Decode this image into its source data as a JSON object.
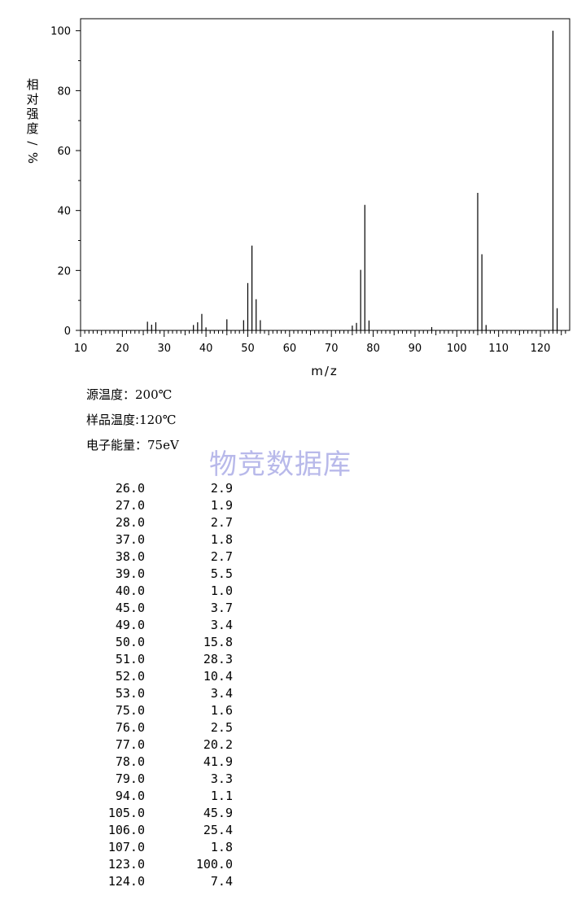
{
  "chart_data": {
    "type": "bar",
    "xlabel": "m/z",
    "ylabel": "相对强度/%",
    "xlim": [
      10,
      127
    ],
    "ylim": [
      0,
      104
    ],
    "xticks": [
      10,
      20,
      30,
      40,
      50,
      60,
      70,
      80,
      90,
      100,
      110,
      120
    ],
    "yticks": [
      0,
      20,
      40,
      60,
      80,
      100
    ],
    "x": [
      26,
      27,
      28,
      37,
      38,
      39,
      40,
      45,
      49,
      50,
      51,
      52,
      53,
      75,
      76,
      77,
      78,
      79,
      94,
      105,
      106,
      107,
      123,
      124
    ],
    "values": [
      2.9,
      1.9,
      2.7,
      1.8,
      2.7,
      5.5,
      1.0,
      3.7,
      3.4,
      15.8,
      28.3,
      10.4,
      3.4,
      1.6,
      2.5,
      20.2,
      41.9,
      3.3,
      1.1,
      45.9,
      25.4,
      1.8,
      100.0,
      7.4
    ]
  },
  "meta": {
    "source_temp": {
      "label": "源温度：",
      "value": "200℃"
    },
    "sample_temp": {
      "label": "样品温度:",
      "value": "120℃"
    },
    "electron_energy": {
      "label": "电子能量：",
      "value": "75eV"
    }
  },
  "watermark": "物竞数据库",
  "peak_table": [
    [
      "26.0",
      "2.9"
    ],
    [
      "27.0",
      "1.9"
    ],
    [
      "28.0",
      "2.7"
    ],
    [
      "37.0",
      "1.8"
    ],
    [
      "38.0",
      "2.7"
    ],
    [
      "39.0",
      "5.5"
    ],
    [
      "40.0",
      "1.0"
    ],
    [
      "45.0",
      "3.7"
    ],
    [
      "49.0",
      "3.4"
    ],
    [
      "50.0",
      "15.8"
    ],
    [
      "51.0",
      "28.3"
    ],
    [
      "52.0",
      "10.4"
    ],
    [
      "53.0",
      "3.4"
    ],
    [
      "75.0",
      "1.6"
    ],
    [
      "76.0",
      "2.5"
    ],
    [
      "77.0",
      "20.2"
    ],
    [
      "78.0",
      "41.9"
    ],
    [
      "79.0",
      "3.3"
    ],
    [
      "94.0",
      "1.1"
    ],
    [
      "105.0",
      "45.9"
    ],
    [
      "106.0",
      "25.4"
    ],
    [
      "107.0",
      "1.8"
    ],
    [
      "123.0",
      "100.0"
    ],
    [
      "124.0",
      "7.4"
    ]
  ]
}
